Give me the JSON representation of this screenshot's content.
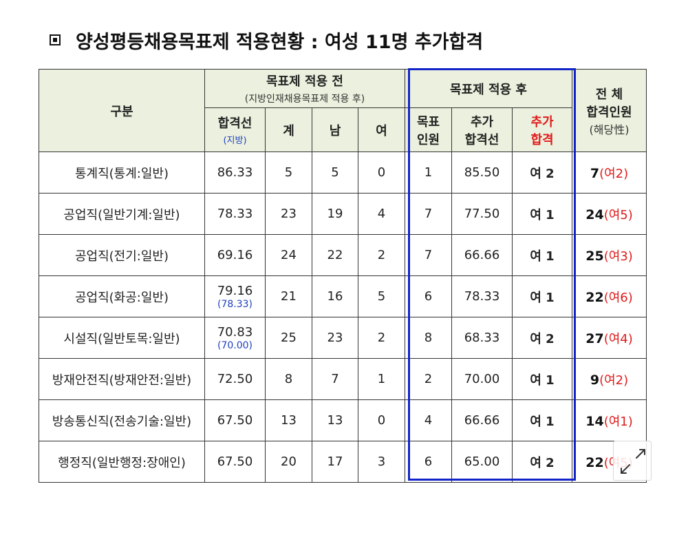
{
  "title": "양성평등채용목표제 적용현황 : 여성 11명 추가합격",
  "header": {
    "category": "구분",
    "before": "목표제 적용 전",
    "before_sub": "(지방인재채용목표제 적용 후)",
    "after": "목표제 적용 후",
    "total_line1": "전 체",
    "total_line2": "합격인원",
    "total_line3": "(해당性)",
    "cutoff": "합격선",
    "cutoff_sub": "(지방)",
    "sum": "계",
    "male": "남",
    "female": "여",
    "target_1": "목표",
    "target_2": "인원",
    "add_cutoff_1": "추가",
    "add_cutoff_2": "합격선",
    "add_pass_1": "추가",
    "add_pass_2": "합격"
  },
  "rows": [
    {
      "category": "통계직(통계:일반)",
      "cutoff": "86.33",
      "cutoff_sub": "",
      "sum": "5",
      "male": "5",
      "female": "0",
      "target": "1",
      "add_cutoff": "85.50",
      "add_pass": "여 2",
      "total": "7",
      "total_sub": "(여2)"
    },
    {
      "category": "공업직(일반기계:일반)",
      "cutoff": "78.33",
      "cutoff_sub": "",
      "sum": "23",
      "male": "19",
      "female": "4",
      "target": "7",
      "add_cutoff": "77.50",
      "add_pass": "여 1",
      "total": "24",
      "total_sub": "(여5)"
    },
    {
      "category": "공업직(전기:일반)",
      "cutoff": "69.16",
      "cutoff_sub": "",
      "sum": "24",
      "male": "22",
      "female": "2",
      "target": "7",
      "add_cutoff": "66.66",
      "add_pass": "여 1",
      "total": "25",
      "total_sub": "(여3)"
    },
    {
      "category": "공업직(화공:일반)",
      "cutoff": "79.16",
      "cutoff_sub": "(78.33)",
      "sum": "21",
      "male": "16",
      "female": "5",
      "target": "6",
      "add_cutoff": "78.33",
      "add_pass": "여 1",
      "total": "22",
      "total_sub": "(여6)"
    },
    {
      "category": "시설직(일반토목:일반)",
      "cutoff": "70.83",
      "cutoff_sub": "(70.00)",
      "sum": "25",
      "male": "23",
      "female": "2",
      "target": "8",
      "add_cutoff": "68.33",
      "add_pass": "여 2",
      "total": "27",
      "total_sub": "(여4)"
    },
    {
      "category": "방재안전직(방재안전:일반)",
      "cutoff": "72.50",
      "cutoff_sub": "",
      "sum": "8",
      "male": "7",
      "female": "1",
      "target": "2",
      "add_cutoff": "70.00",
      "add_pass": "여 1",
      "total": "9",
      "total_sub": "(여2)"
    },
    {
      "category": "방송통신직(전송기술:일반)",
      "cutoff": "67.50",
      "cutoff_sub": "",
      "sum": "13",
      "male": "13",
      "female": "0",
      "target": "4",
      "add_cutoff": "66.66",
      "add_pass": "여 1",
      "total": "14",
      "total_sub": "(여1)"
    },
    {
      "category": "행정직(일반행정:장애인)",
      "cutoff": "67.50",
      "cutoff_sub": "",
      "sum": "20",
      "male": "17",
      "female": "3",
      "target": "6",
      "add_cutoff": "65.00",
      "add_pass": "여 2",
      "total": "22",
      "total_sub": "(여5)"
    }
  ],
  "colors": {
    "header_bg": "#ebf1de",
    "highlight_frame": "#1224c8",
    "added_text": "#e01b1b",
    "sub_value": "#1f3fbf"
  },
  "icons": {
    "expand": "expand-arrows-icon",
    "title_marker": "square-bullet-icon"
  }
}
